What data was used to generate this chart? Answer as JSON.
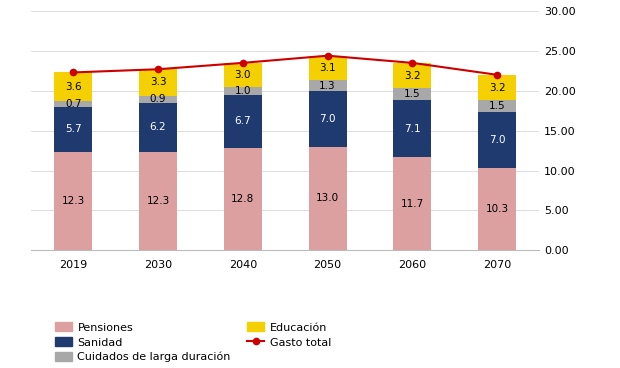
{
  "years": [
    2019,
    2030,
    2040,
    2050,
    2060,
    2070
  ],
  "pensiones": [
    12.3,
    12.3,
    12.8,
    13.0,
    11.7,
    10.3
  ],
  "sanidad": [
    5.7,
    6.2,
    6.7,
    7.0,
    7.1,
    7.0
  ],
  "cuidados": [
    0.7,
    0.9,
    1.0,
    1.3,
    1.5,
    1.5
  ],
  "educacion": [
    3.6,
    3.3,
    3.0,
    3.1,
    3.2,
    3.2
  ],
  "gasto_total": [
    22.3,
    22.7,
    23.5,
    24.4,
    23.5,
    22.0
  ],
  "bar_colors": {
    "pensiones": "#dda0a0",
    "sanidad": "#1f3a6e",
    "cuidados": "#a8a8a8",
    "educacion": "#f5d000"
  },
  "line_color": "#cc0000",
  "ylim": [
    0,
    30
  ],
  "yticks": [
    0,
    5,
    10,
    15,
    20,
    25,
    30
  ],
  "ytick_labels": [
    "0.00",
    "5.00",
    "10.00",
    "15.00",
    "20.00",
    "25.00",
    "30.00"
  ],
  "legend_labels": [
    "Pensiones",
    "Sanidad",
    "Cuidados de larga duración",
    "Educación",
    "Gasto total"
  ],
  "bar_width": 0.45,
  "background_color": "#ffffff",
  "label_fontsize": 7.5,
  "legend_fontsize": 8,
  "tick_fontsize": 8
}
